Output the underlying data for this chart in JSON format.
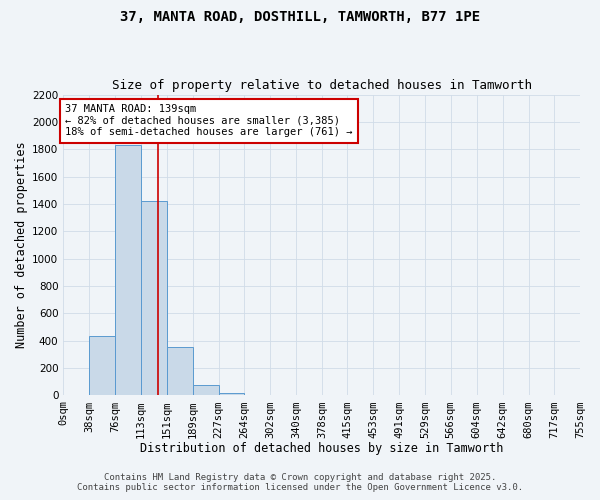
{
  "title1": "37, MANTA ROAD, DOSTHILL, TAMWORTH, B77 1PE",
  "title2": "Size of property relative to detached houses in Tamworth",
  "xlabel": "Distribution of detached houses by size in Tamworth",
  "ylabel": "Number of detached properties",
  "bar_edges": [
    0,
    38,
    76,
    113,
    151,
    189,
    227,
    264,
    302,
    340,
    378,
    415,
    453,
    491,
    529,
    566,
    604,
    642,
    680,
    717,
    755
  ],
  "bar_heights": [
    0,
    435,
    1830,
    1420,
    355,
    75,
    20,
    0,
    0,
    0,
    0,
    0,
    0,
    0,
    0,
    0,
    0,
    0,
    0,
    0
  ],
  "bar_color": "#c9d9e8",
  "bar_edge_color": "#5a9ad0",
  "vline_x": 139,
  "vline_color": "#cc0000",
  "ylim": [
    0,
    2200
  ],
  "yticks": [
    0,
    200,
    400,
    600,
    800,
    1000,
    1200,
    1400,
    1600,
    1800,
    2000,
    2200
  ],
  "xtick_labels": [
    "0sqm",
    "38sqm",
    "76sqm",
    "113sqm",
    "151sqm",
    "189sqm",
    "227sqm",
    "264sqm",
    "302sqm",
    "340sqm",
    "378sqm",
    "415sqm",
    "453sqm",
    "491sqm",
    "529sqm",
    "566sqm",
    "604sqm",
    "642sqm",
    "680sqm",
    "717sqm",
    "755sqm"
  ],
  "annotation_title": "37 MANTA ROAD: 139sqm",
  "annotation_line1": "← 82% of detached houses are smaller (3,385)",
  "annotation_line2": "18% of semi-detached houses are larger (761) →",
  "annotation_box_color": "#ffffff",
  "annotation_border_color": "#cc0000",
  "footer1": "Contains HM Land Registry data © Crown copyright and database right 2025.",
  "footer2": "Contains public sector information licensed under the Open Government Licence v3.0.",
  "bg_color": "#f0f4f8",
  "grid_color": "#d0dce8",
  "title_fontsize": 10,
  "subtitle_fontsize": 9,
  "axis_label_fontsize": 8.5,
  "tick_fontsize": 7.5,
  "annotation_fontsize": 7.5,
  "footer_fontsize": 6.5
}
